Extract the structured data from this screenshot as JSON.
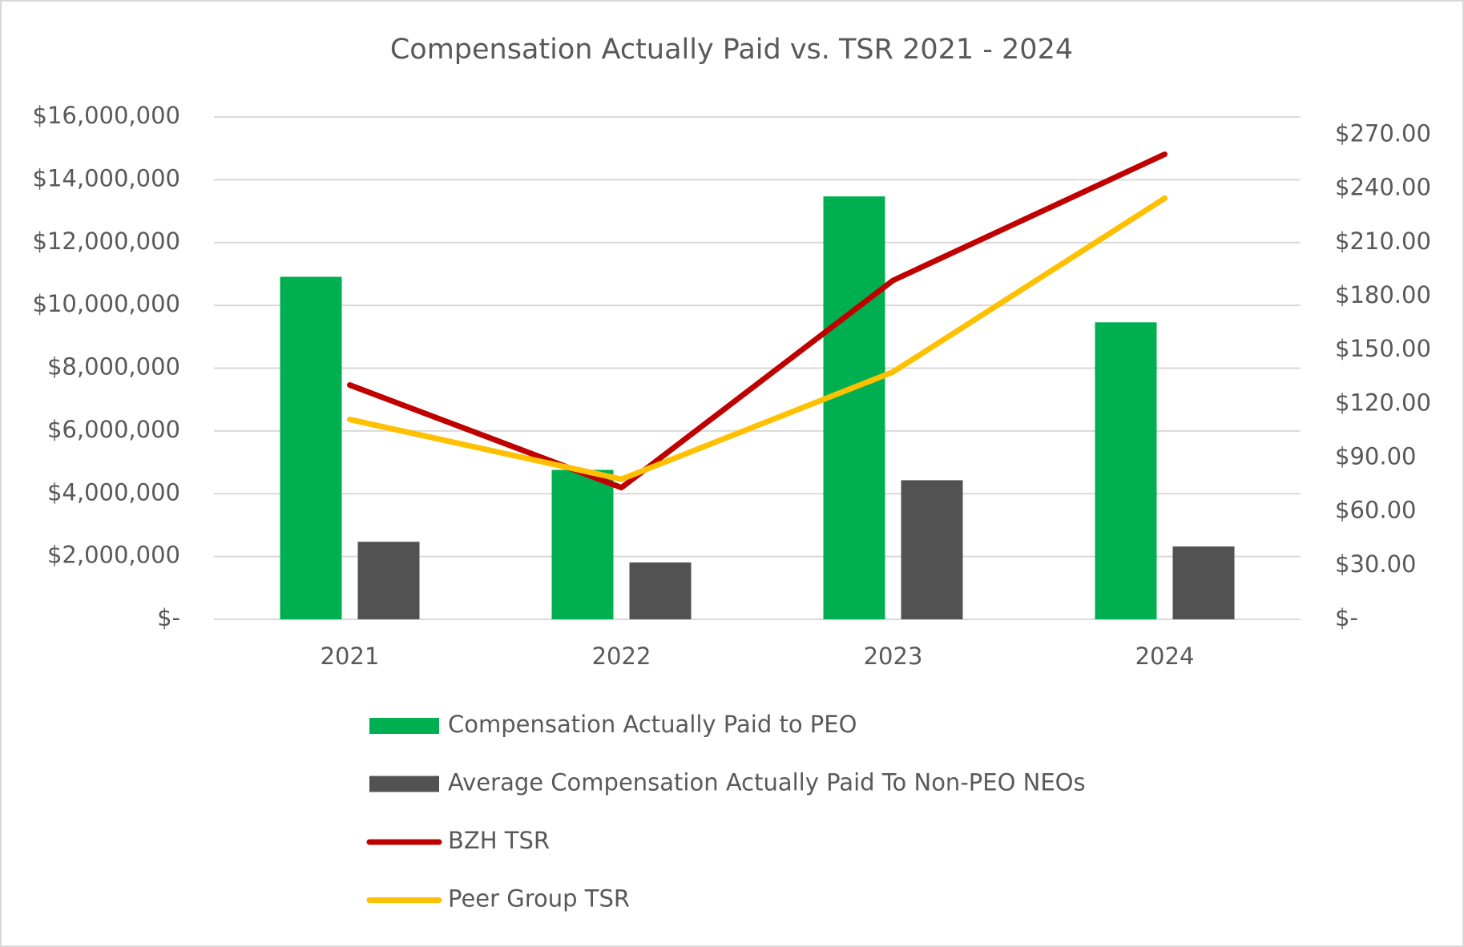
{
  "chart_data": {
    "type": "bar",
    "title": "Compensation Actually Paid vs. TSR 2021 - 2024",
    "categories": [
      "2021",
      "2022",
      "2023",
      "2024"
    ],
    "series": [
      {
        "name": "Compensation Actually Paid to PEO",
        "type": "bar",
        "color": "#00b050",
        "values": [
          10910000,
          4760000,
          13470000,
          9460000
        ]
      },
      {
        "name": "Average Compensation Actually Paid To Non-PEO NEOs",
        "type": "bar",
        "color": "#525252",
        "values": [
          2470000,
          1810000,
          4430000,
          2320000
        ]
      },
      {
        "name": "BZH TSR",
        "type": "line",
        "axis": "y2",
        "color": "#c00000",
        "values": [
          130.6,
          73.4,
          188.9,
          259.2
        ]
      },
      {
        "name": "Peer Group TSR",
        "type": "line",
        "axis": "y2",
        "color": "#ffc000",
        "values": [
          111.4,
          78.1,
          137.9,
          234.7
        ]
      }
    ],
    "ylim": [
      0,
      16000000
    ],
    "yticks": [
      {
        "value": 0,
        "label": "$-"
      },
      {
        "value": 2000000,
        "label": "$2,000,000"
      },
      {
        "value": 4000000,
        "label": "$4,000,000"
      },
      {
        "value": 6000000,
        "label": "$6,000,000"
      },
      {
        "value": 8000000,
        "label": "$8,000,000"
      },
      {
        "value": 10000000,
        "label": "$10,000,000"
      },
      {
        "value": 12000000,
        "label": "$12,000,000"
      },
      {
        "value": 14000000,
        "label": "$14,000,000"
      },
      {
        "value": 16000000,
        "label": "$16,000,000"
      }
    ],
    "y2lim": [
      0,
      280
    ],
    "y2ticks": [
      {
        "value": 0,
        "label": "$-"
      },
      {
        "value": 30,
        "label": "$30.00"
      },
      {
        "value": 60,
        "label": "$60.00"
      },
      {
        "value": 90,
        "label": "$90.00"
      },
      {
        "value": 120,
        "label": "$120.00"
      },
      {
        "value": 150,
        "label": "$150.00"
      },
      {
        "value": 180,
        "label": "$180.00"
      },
      {
        "value": 210,
        "label": "$210.00"
      },
      {
        "value": 240,
        "label": "$240.00"
      },
      {
        "value": 270,
        "label": "$270.00"
      }
    ],
    "grid": true,
    "legend": "bottom"
  }
}
